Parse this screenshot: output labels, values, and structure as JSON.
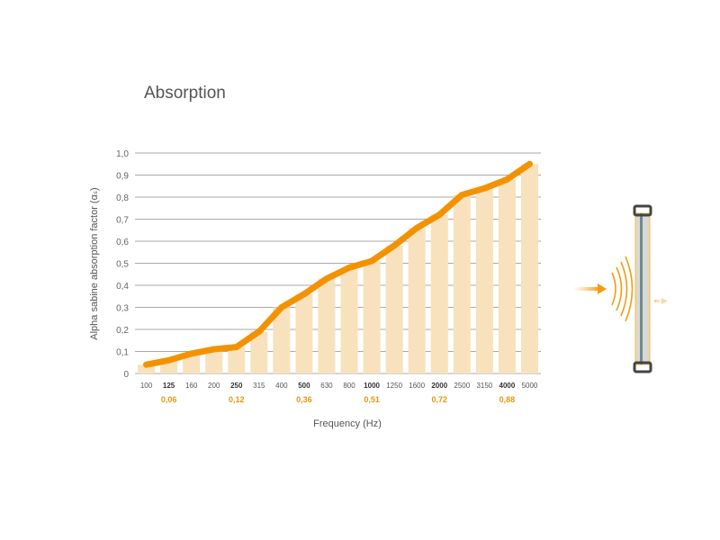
{
  "chart_data": {
    "type": "bar",
    "title": "Absorption",
    "xlabel": "Frequency (Hz)",
    "ylabel": "Alpha sabine absorption factor (αₛ)",
    "ylim": [
      0,
      1.0
    ],
    "y_ticks": [
      "0",
      "0,1",
      "0,2",
      "0,3",
      "0,4",
      "0,5",
      "0,6",
      "0,7",
      "0,8",
      "0,9",
      "1,0"
    ],
    "grid": true,
    "categories": [
      "100",
      "125",
      "160",
      "200",
      "250",
      "315",
      "400",
      "500",
      "630",
      "800",
      "1000",
      "1250",
      "1600",
      "2000",
      "2500",
      "3150",
      "4000",
      "5000"
    ],
    "bold_categories": [
      "125",
      "250",
      "500",
      "1000",
      "2000",
      "4000"
    ],
    "values": [
      0.04,
      0.06,
      0.09,
      0.11,
      0.12,
      0.19,
      0.3,
      0.36,
      0.43,
      0.48,
      0.51,
      0.58,
      0.66,
      0.72,
      0.81,
      0.84,
      0.88,
      0.95
    ],
    "value_labels": [
      {
        "category": "125",
        "text": "0,06"
      },
      {
        "category": "250",
        "text": "0,12"
      },
      {
        "category": "500",
        "text": "0,36"
      },
      {
        "category": "1000",
        "text": "0,51"
      },
      {
        "category": "2000",
        "text": "0,72"
      },
      {
        "category": "4000",
        "text": "0,88"
      }
    ]
  },
  "colors": {
    "bar": "#f8e1bd",
    "line": "#f39200",
    "label": "#e8950e",
    "grid": "#8c8c8c",
    "panel_frame": "#555555",
    "panel_fill": "#d9d9d0",
    "panel_edge": "#f0c040"
  },
  "icons": {
    "panel": "acoustic-panel-cross-section-icon",
    "incoming_arrow": "incoming-sound-arrow-icon",
    "waves": "sound-wave-icon",
    "outgoing_arrow": "transmitted-sound-arrow-icon"
  }
}
